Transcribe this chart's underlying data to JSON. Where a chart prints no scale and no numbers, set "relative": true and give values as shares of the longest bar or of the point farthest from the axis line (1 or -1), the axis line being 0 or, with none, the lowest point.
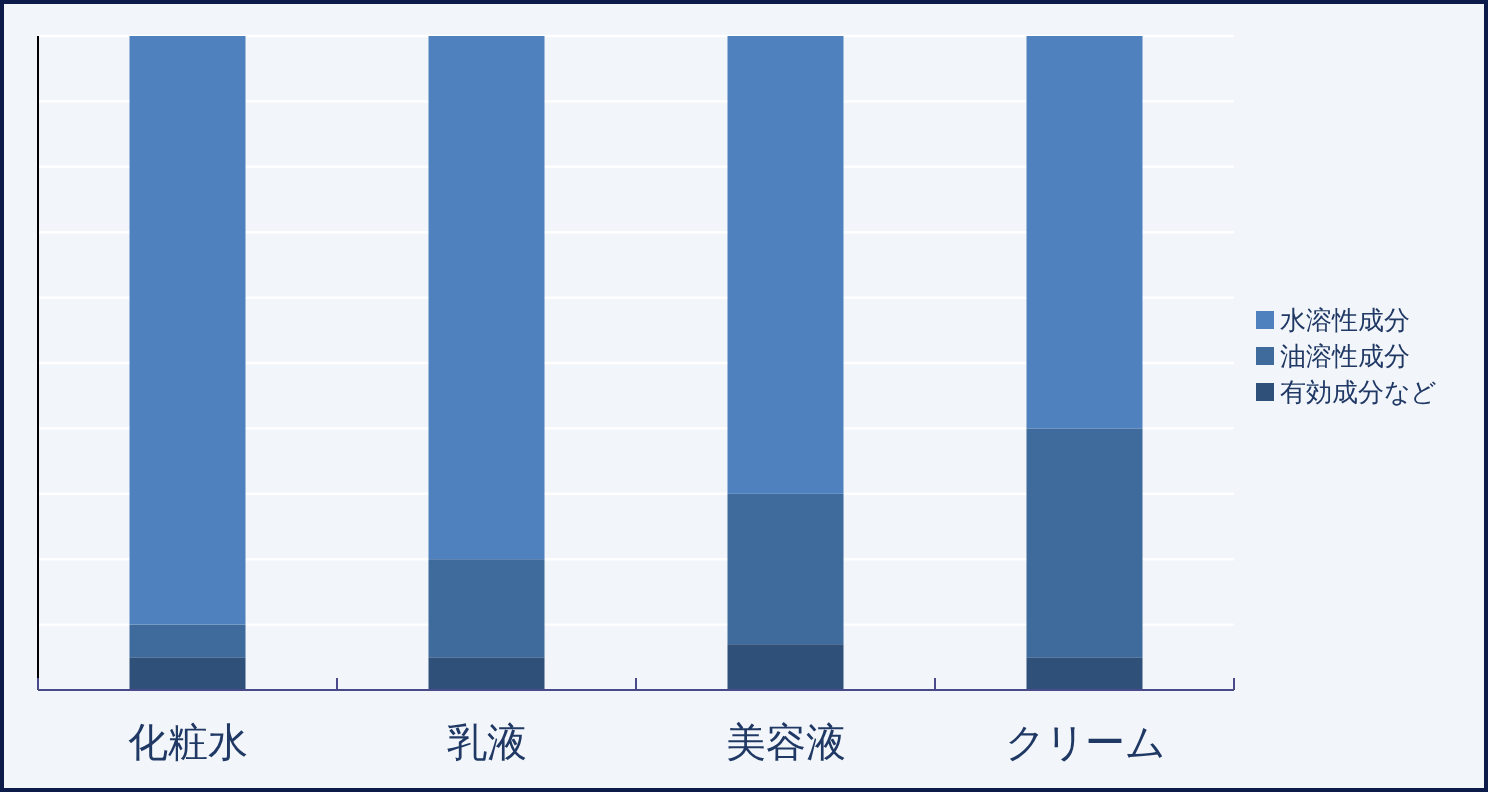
{
  "chart_data": {
    "type": "bar",
    "stacked": true,
    "relative": true,
    "grid": "y",
    "legend": "right",
    "categories": [
      "化粧水",
      "乳液",
      "美容液",
      "クリーム"
    ],
    "series": [
      {
        "name": "有効成分など",
        "color": "#2f5078",
        "values": [
          0.05,
          0.05,
          0.07,
          0.05
        ]
      },
      {
        "name": "油溶性成分",
        "color": "#3f6a9c",
        "values": [
          0.05,
          0.15,
          0.23,
          0.35
        ]
      },
      {
        "name": "水溶性成分",
        "color": "#4e81bd",
        "values": [
          0.9,
          0.8,
          0.7,
          0.6
        ]
      }
    ]
  }
}
